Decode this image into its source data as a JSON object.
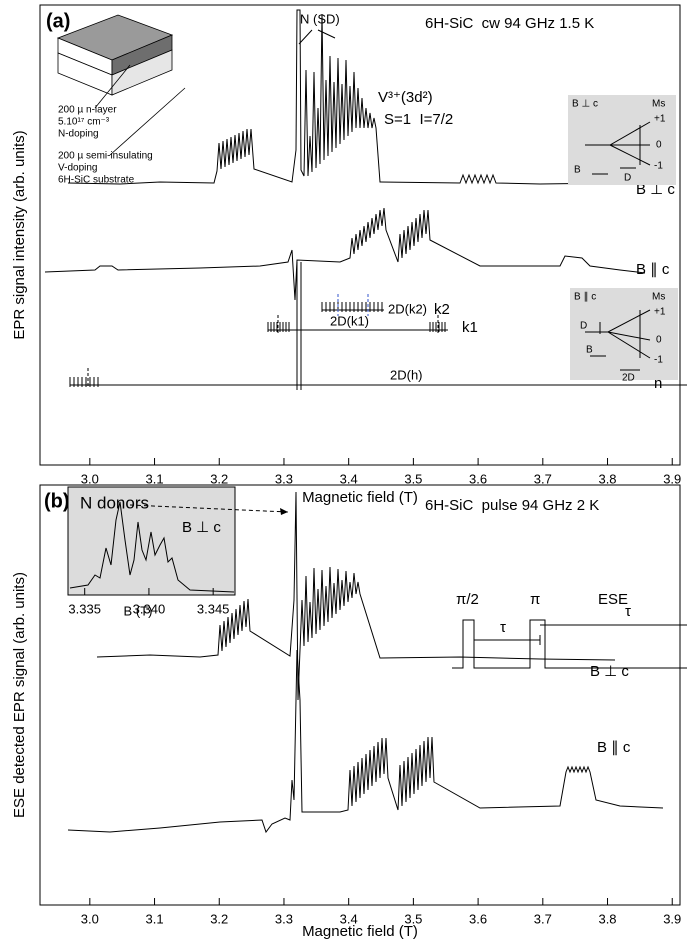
{
  "chart_data": [
    {
      "type": "line",
      "panel": "(a)",
      "title": "6H-SiC  cw 94 GHz 1.5 K",
      "xlabel": "Magnetic field (T)",
      "ylabel": "EPR signal intensity (arb. units)",
      "xlim": [
        2.923,
        3.912
      ],
      "xticks": [
        {
          "value": 3,
          "label": "3.0"
        },
        {
          "value": 3.1,
          "label": "3.1"
        },
        {
          "value": 3.2,
          "label": "3.2"
        },
        {
          "value": 3.3,
          "label": "3.3"
        },
        {
          "value": 3.4,
          "label": "3.4"
        },
        {
          "value": 3.5,
          "label": "3.5"
        },
        {
          "value": 3.6,
          "label": "3.6"
        },
        {
          "value": 3.7,
          "label": "3.7"
        },
        {
          "value": 3.8,
          "label": "3.8"
        },
        {
          "value": 3.9,
          "label": "3.9"
        }
      ],
      "annotations": [
        "N (SD)",
        "200 µ n-layer",
        "5.10¹⁷ cm⁻³",
        "N-doping",
        "200 µ semi-insulating",
        "V-doping",
        "6H-SiC substrate",
        "V³⁺(3d²)",
        "S=1  I=7/2",
        "B ⊥ c",
        "B ∥ c",
        "2D(k2)",
        "k2",
        "2D(k1)",
        "k1",
        "2D(h)",
        "h"
      ],
      "diagram_perp": [
        "B ⊥ c",
        "Ms",
        "+1",
        "0",
        "-1",
        "B",
        "D"
      ],
      "diagram_par": [
        "B ∥ c",
        "Ms",
        "+1",
        "0",
        "-1",
        "D",
        "B",
        "2D"
      ]
    },
    {
      "type": "line",
      "panel": "(b)",
      "title": "6H-SiC  pulse 94 GHz 2 K",
      "xlabel": "Magnetic field (T)",
      "ylabel": "ESE detected EPR signal (arb. units)",
      "xlim": [
        2.923,
        3.912
      ],
      "xticks": [
        {
          "value": 3,
          "label": "3.0"
        },
        {
          "value": 3.1,
          "label": "3.1"
        },
        {
          "value": 3.2,
          "label": "3.2"
        },
        {
          "value": 3.3,
          "label": "3.3"
        },
        {
          "value": 3.4,
          "label": "3.4"
        },
        {
          "value": 3.5,
          "label": "3.5"
        },
        {
          "value": 3.6,
          "label": "3.6"
        },
        {
          "value": 3.7,
          "label": "3.7"
        },
        {
          "value": 3.8,
          "label": "3.8"
        },
        {
          "value": 3.9,
          "label": "3.9"
        }
      ],
      "annotations": [
        "B ⊥ c",
        "B ∥ c"
      ],
      "pulse": [
        "π/2",
        "π",
        "ESE",
        "τ",
        "τ"
      ],
      "inset": {
        "title": "N donors",
        "subtitle": "B ⊥ c",
        "xlabel": "B (T)",
        "xlim": [
          3.3337,
          3.3467
        ],
        "xticks": [
          3.335,
          {
            "value": 3.34,
            "label": "3.340"
          },
          3.345
        ]
      }
    }
  ]
}
